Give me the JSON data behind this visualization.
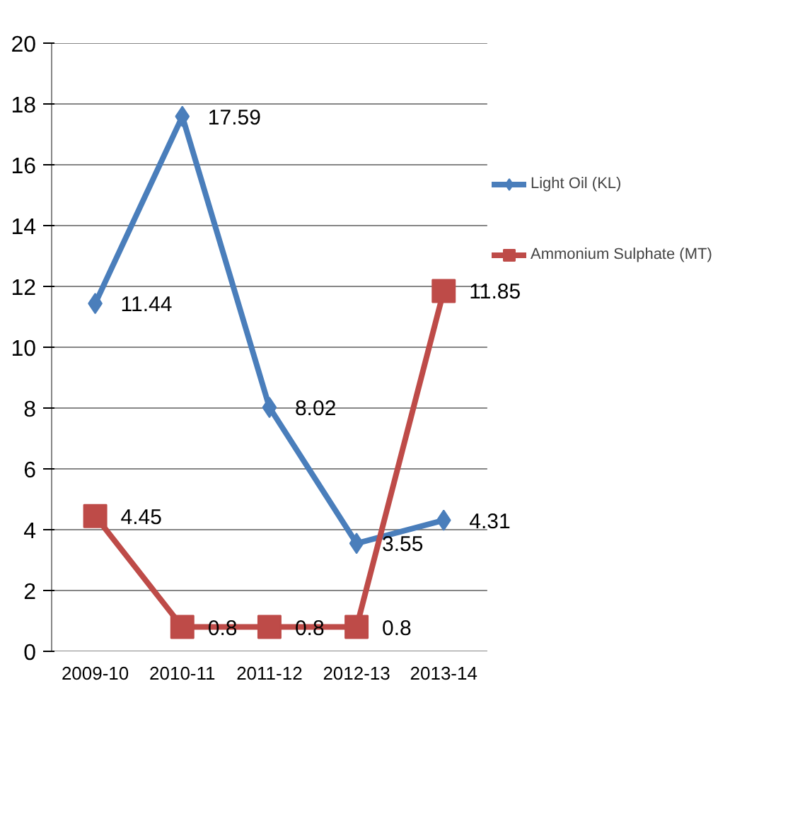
{
  "chart_data": {
    "type": "line",
    "categories": [
      "2009-10",
      "2010-11",
      "2011-12",
      "2012-13",
      "2013-14"
    ],
    "series": [
      {
        "name": "Light Oil (KL)",
        "color": "#4a7ebb",
        "marker": "diamond",
        "values": [
          11.44,
          17.59,
          8.02,
          3.55,
          4.31
        ]
      },
      {
        "name": "Ammonium Sulphate (MT)",
        "color": "#be4b48",
        "marker": "square",
        "values": [
          4.45,
          0.8,
          0.8,
          0.8,
          11.85
        ]
      }
    ],
    "ylim": [
      0,
      20
    ],
    "yticks": [
      0,
      2,
      4,
      6,
      8,
      10,
      12,
      14,
      16,
      18,
      20
    ],
    "grid": "y",
    "legend": "right",
    "data_labels": true
  }
}
